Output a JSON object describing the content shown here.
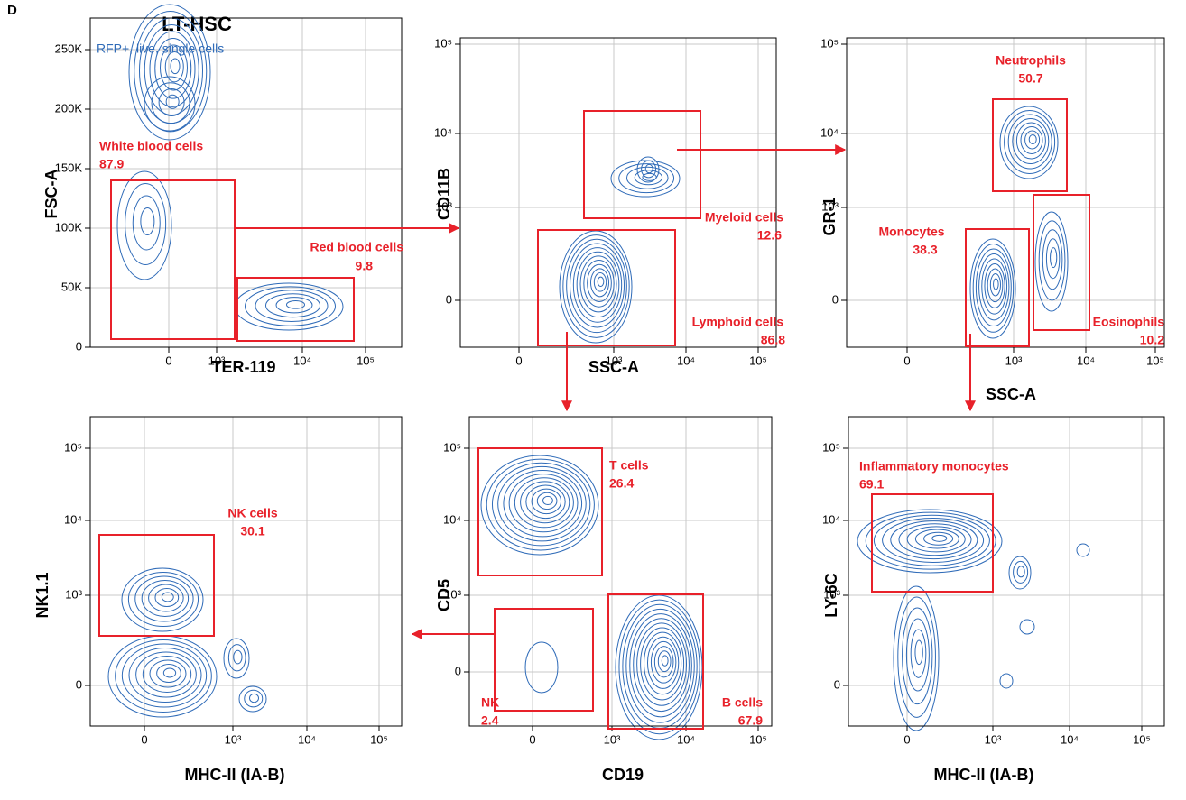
{
  "panel_letter": "D",
  "title": "LT-HSC",
  "panels": [
    {
      "y_label": "FSC-A",
      "x_label": "TER-119",
      "note": "RFP+, live, single cells",
      "y_ticks": [
        "0",
        "50K",
        "100K",
        "150K",
        "200K",
        "250K"
      ],
      "x_ticks": [
        "0",
        "10³",
        "10⁴",
        "10⁵"
      ],
      "gates": [
        {
          "name": "White blood cells",
          "value": 87.9
        },
        {
          "name": "Red blood cells",
          "value": 9.8
        }
      ]
    },
    {
      "y_label": "CD11B",
      "x_label": "SSC-A",
      "y_ticks": [
        "0",
        "10³",
        "10⁴",
        "10⁵"
      ],
      "x_ticks": [
        "0",
        "10³",
        "10⁴",
        "10⁵"
      ],
      "gates": [
        {
          "name": "Myeloid cells",
          "value": 12.6
        },
        {
          "name": "Lymphoid cells",
          "value": 86.8
        }
      ]
    },
    {
      "y_label": "GR-1",
      "x_label": "SSC-A",
      "y_ticks": [
        "0",
        "10³",
        "10⁴",
        "10⁵"
      ],
      "x_ticks": [
        "0",
        "10³",
        "10⁴",
        "10⁵"
      ],
      "gates": [
        {
          "name": "Neutrophils",
          "value": 50.7
        },
        {
          "name": "Monocytes",
          "value": 38.3
        },
        {
          "name": "Eosinophils",
          "value": 10.2
        }
      ]
    },
    {
      "y_label": "NK1.1",
      "x_label": "MHC-II (IA-B)",
      "y_ticks": [
        "0",
        "10³",
        "10⁴",
        "10⁵"
      ],
      "x_ticks": [
        "0",
        "10³",
        "10⁴",
        "10⁵"
      ],
      "gates": [
        {
          "name": "NK cells",
          "value": 30.1
        }
      ]
    },
    {
      "y_label": "CD5",
      "x_label": "CD19",
      "y_ticks": [
        "0",
        "10³",
        "10⁴",
        "10⁵"
      ],
      "x_ticks": [
        "0",
        "10³",
        "10⁴",
        "10⁵"
      ],
      "gates": [
        {
          "name": "T cells",
          "value": 26.4
        },
        {
          "name": "NK",
          "value": 2.4
        },
        {
          "name": "B cells",
          "value": 67.9
        }
      ]
    },
    {
      "y_label": "LY-6C",
      "x_label": "MHC-II (IA-B)",
      "y_ticks": [
        "0",
        "10³",
        "10⁴",
        "10⁵"
      ],
      "x_ticks": [
        "0",
        "10³",
        "10⁴",
        "10⁵"
      ],
      "gates": [
        {
          "name": "Inflammatory monocytes",
          "value": 69.1
        }
      ]
    }
  ]
}
